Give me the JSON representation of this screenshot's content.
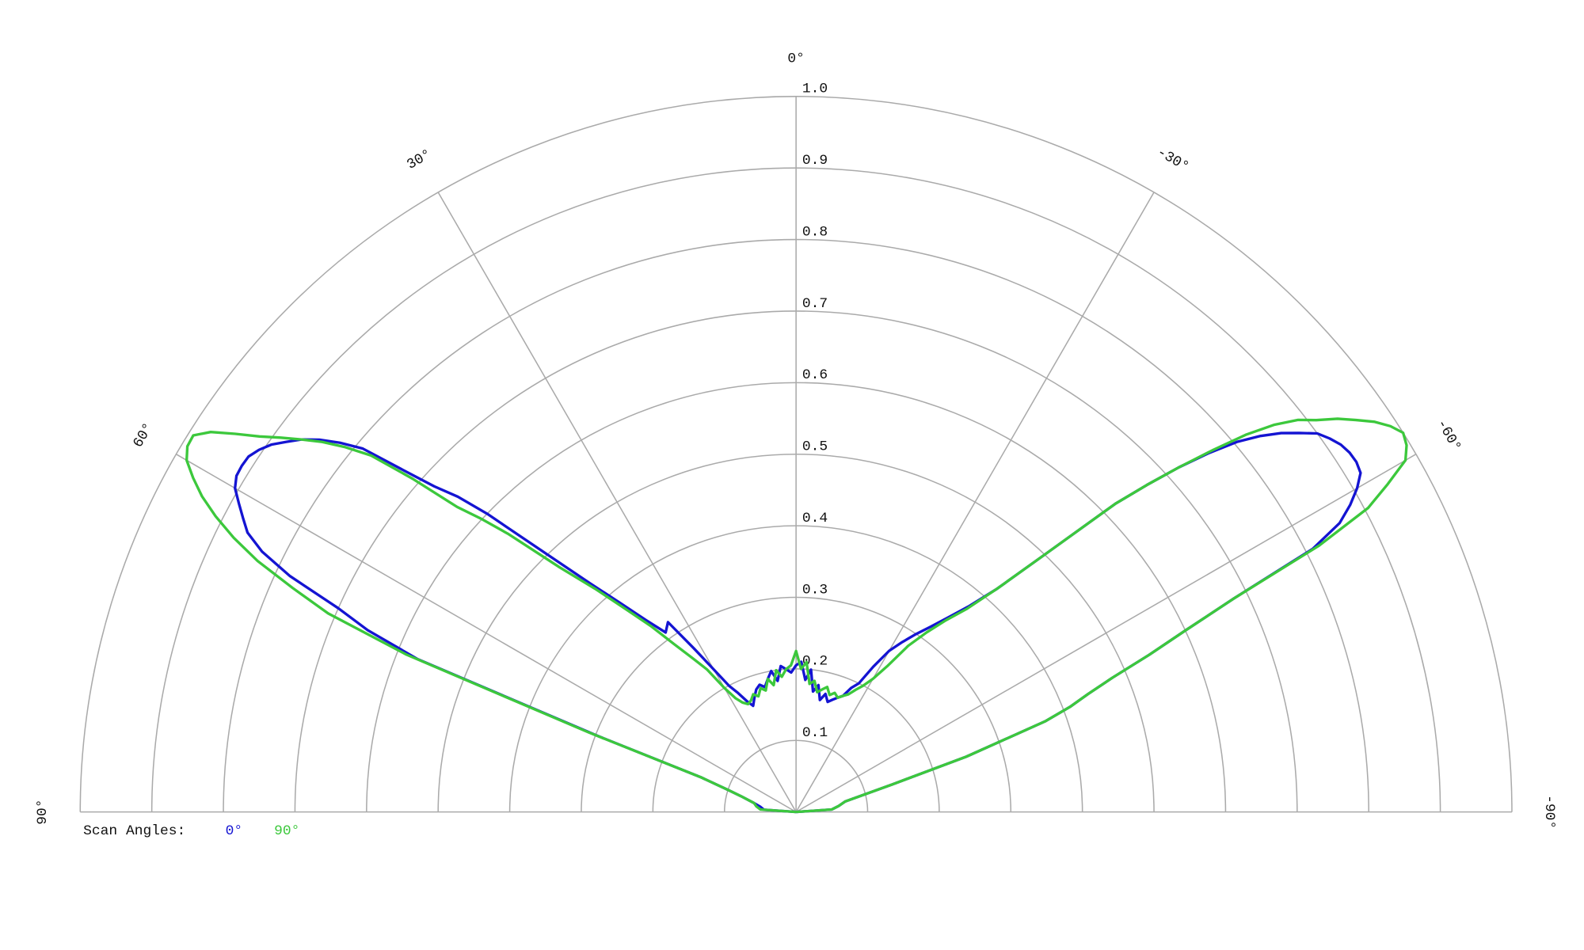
{
  "chart_data": {
    "type": "polar",
    "thetalim": [
      -90,
      90
    ],
    "rlim": [
      0,
      1
    ],
    "rticks": [
      0.1,
      0.2,
      0.3,
      0.4,
      0.5,
      0.6,
      0.7,
      0.8,
      0.9,
      {
        "value": 1,
        "label": "1.0"
      }
    ],
    "thetaticks": [
      {
        "value": 90,
        "label": "90°"
      },
      {
        "value": 60,
        "label": "60°"
      },
      {
        "value": 30,
        "label": "30°"
      },
      {
        "value": 0,
        "label": "0°"
      },
      {
        "value": -30,
        "label": "-30°"
      },
      {
        "value": -60,
        "label": "-60°"
      },
      {
        "value": -90,
        "label": "-90°"
      }
    ],
    "legend_title": "Scan Angles:",
    "theta": [
      90,
      86,
      82,
      78,
      74,
      72,
      70,
      69,
      68,
      67,
      66,
      65,
      64,
      63,
      62,
      61,
      60,
      59,
      58,
      57,
      56,
      55,
      54,
      53,
      52,
      51,
      50,
      49,
      48,
      47,
      46,
      44,
      42,
      40,
      38,
      36,
      34,
      32,
      30,
      28,
      26,
      24,
      22,
      20,
      18,
      16,
      14,
      12,
      10,
      8,
      6,
      4,
      2,
      0,
      -2,
      -4,
      -6,
      -8,
      -10,
      -12,
      -14,
      -16,
      -18,
      -20,
      -22,
      -24,
      -26,
      -28,
      -30,
      -32,
      -34,
      -36,
      -38,
      -40,
      -42,
      -44,
      -46,
      -47,
      -48,
      -49,
      -50,
      -51,
      -52,
      -53,
      -54,
      -55,
      -56,
      -57,
      -58,
      -59,
      -60,
      -61,
      -62,
      -63,
      -64,
      -65,
      -66,
      -67,
      -68,
      -69,
      -70,
      -72,
      -74,
      -78,
      -82,
      -86,
      -90
    ],
    "series": [
      {
        "name": "0°",
        "color": "#1414d2",
        "values": [
          0,
          0.045,
          0.05,
          0.06,
          0.08,
          0.1,
          0.14,
          0.3,
          0.57,
          0.65,
          0.7,
          0.78,
          0.83,
          0.86,
          0.875,
          0.89,
          0.905,
          0.912,
          0.913,
          0.912,
          0.905,
          0.895,
          0.88,
          0.865,
          0.845,
          0.82,
          0.79,
          0.73,
          0.68,
          0.646,
          0.6,
          0.5,
          0.43,
          0.38,
          0.34,
          0.31,
          0.32,
          0.27,
          0.23,
          0.2,
          0.185,
          0.17,
          0.16,
          0.17,
          0.18,
          0.185,
          0.18,
          0.19,
          0.2,
          0.185,
          0.205,
          0.2,
          0.195,
          0.205,
          0.21,
          0.185,
          0.2,
          0.17,
          0.18,
          0.16,
          0.17,
          0.16,
          0.165,
          0.17,
          0.175,
          0.19,
          0.2,
          0.23,
          0.26,
          0.28,
          0.3,
          0.32,
          0.345,
          0.375,
          0.42,
          0.5,
          0.62,
          0.67,
          0.72,
          0.765,
          0.805,
          0.835,
          0.86,
          0.88,
          0.9,
          0.91,
          0.918,
          0.922,
          0.923,
          0.92,
          0.905,
          0.885,
          0.86,
          0.81,
          0.68,
          0.6,
          0.54,
          0.48,
          0.44,
          0.41,
          0.37,
          0.25,
          0.14,
          0.07,
          0.06,
          0.05,
          0
        ]
      },
      {
        "name": "90°",
        "color": "#3cc83c",
        "values": [
          0,
          0.05,
          0.056,
          0.06,
          0.08,
          0.1,
          0.14,
          0.31,
          0.587,
          0.71,
          0.77,
          0.83,
          0.874,
          0.91,
          0.94,
          0.963,
          0.983,
          0.992,
          0.993,
          0.975,
          0.945,
          0.915,
          0.89,
          0.865,
          0.84,
          0.81,
          0.775,
          0.71,
          0.637,
          0.6,
          0.56,
          0.475,
          0.42,
          0.37,
          0.33,
          0.29,
          0.26,
          0.235,
          0.2,
          0.18,
          0.17,
          0.165,
          0.168,
          0.175,
          0.17,
          0.18,
          0.175,
          0.19,
          0.18,
          0.2,
          0.19,
          0.2,
          0.205,
          0.225,
          0.2,
          0.21,
          0.18,
          0.185,
          0.17,
          0.175,
          0.18,
          0.17,
          0.175,
          0.17,
          0.175,
          0.18,
          0.19,
          0.2,
          0.215,
          0.24,
          0.28,
          0.31,
          0.34,
          0.37,
          0.42,
          0.5,
          0.62,
          0.67,
          0.72,
          0.77,
          0.82,
          0.86,
          0.89,
          0.91,
          0.935,
          0.955,
          0.975,
          0.99,
          1.0,
          0.995,
          0.983,
          0.945,
          0.905,
          0.82,
          0.68,
          0.6,
          0.54,
          0.48,
          0.44,
          0.41,
          0.37,
          0.25,
          0.14,
          0.07,
          0.06,
          0.05,
          0
        ]
      }
    ]
  }
}
